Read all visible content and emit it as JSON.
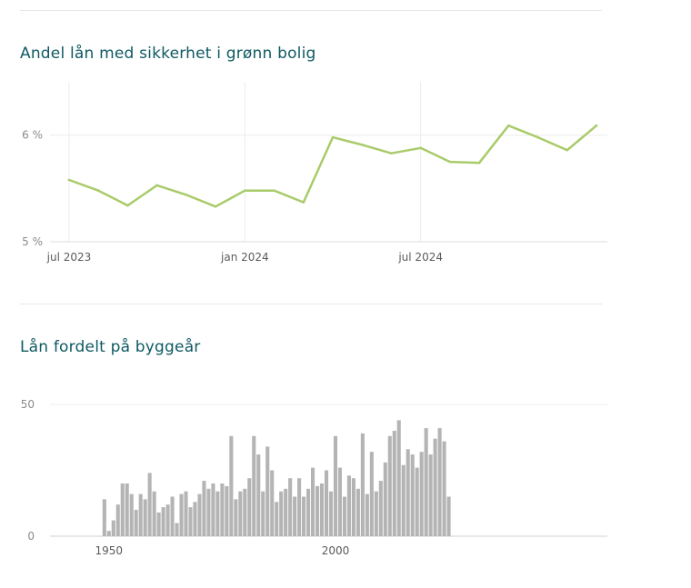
{
  "chart_data": [
    {
      "type": "line",
      "title": "Andel lån med sikkerhet i grønn bolig",
      "xlabel": "",
      "ylabel": "",
      "color": "#a9cb6a",
      "grid": true,
      "y_ticks": [
        "5 %",
        "6 %"
      ],
      "y_tick_values": [
        5,
        6
      ],
      "ylim": [
        5,
        6.13
      ],
      "x_ticks": [
        "jul 2023",
        "jan 2024",
        "jul 2024"
      ],
      "x_tick_dates": [
        "2023-07",
        "2024-01",
        "2024-07"
      ],
      "x": [
        "2023-07",
        "2023-08",
        "2023-09",
        "2023-10",
        "2023-11",
        "2023-12",
        "2024-01",
        "2024-02",
        "2024-03",
        "2024-04",
        "2024-05",
        "2024-06",
        "2024-07",
        "2024-08",
        "2024-09",
        "2024-10",
        "2024-11",
        "2024-12",
        "2025-01"
      ],
      "values": [
        5.58,
        5.48,
        5.34,
        5.53,
        5.44,
        5.33,
        5.48,
        5.48,
        5.37,
        5.98,
        5.91,
        5.83,
        5.88,
        5.75,
        5.74,
        6.09,
        5.98,
        5.86,
        6.09
      ]
    },
    {
      "type": "bar",
      "title": "Lån fordelt på byggeår",
      "xlabel": "",
      "ylabel": "",
      "color": "#b4b4b4",
      "grid": true,
      "y_ticks": [
        "0",
        "50"
      ],
      "y_tick_values": [
        0,
        50
      ],
      "ylim": [
        0,
        50
      ],
      "x_ticks": [
        "1950",
        "2000"
      ],
      "x_tick_values": [
        1950,
        2000
      ],
      "xlim": [
        1937,
        2060
      ],
      "x": [
        1949,
        1950,
        1951,
        1952,
        1953,
        1954,
        1955,
        1956,
        1957,
        1958,
        1959,
        1960,
        1961,
        1962,
        1963,
        1964,
        1965,
        1966,
        1967,
        1968,
        1969,
        1970,
        1971,
        1972,
        1973,
        1974,
        1975,
        1976,
        1977,
        1978,
        1979,
        1980,
        1981,
        1982,
        1983,
        1984,
        1985,
        1986,
        1987,
        1988,
        1989,
        1990,
        1991,
        1992,
        1993,
        1994,
        1995,
        1996,
        1997,
        1998,
        1999,
        2000,
        2001,
        2002,
        2003,
        2004,
        2005,
        2006,
        2007,
        2008,
        2009,
        2010,
        2011,
        2012,
        2013,
        2014,
        2015,
        2016,
        2017,
        2018,
        2019,
        2020,
        2021,
        2022,
        2023,
        2024,
        2025
      ],
      "values": [
        14,
        2,
        6,
        12,
        20,
        20,
        16,
        10,
        16,
        14,
        24,
        17,
        9,
        11,
        12,
        15,
        5,
        16,
        17,
        11,
        13,
        16,
        21,
        18,
        20,
        17,
        20,
        19,
        38,
        14,
        17,
        18,
        22,
        38,
        31,
        17,
        34,
        25,
        13,
        17,
        18,
        22,
        15,
        22,
        15,
        18,
        26,
        19,
        20,
        25,
        17,
        38,
        26,
        15,
        23,
        22,
        18,
        39,
        16,
        32,
        17,
        21,
        28,
        38,
        40,
        44,
        27,
        33,
        31,
        26,
        32,
        41,
        31,
        37,
        41,
        36,
        15
      ]
    }
  ]
}
